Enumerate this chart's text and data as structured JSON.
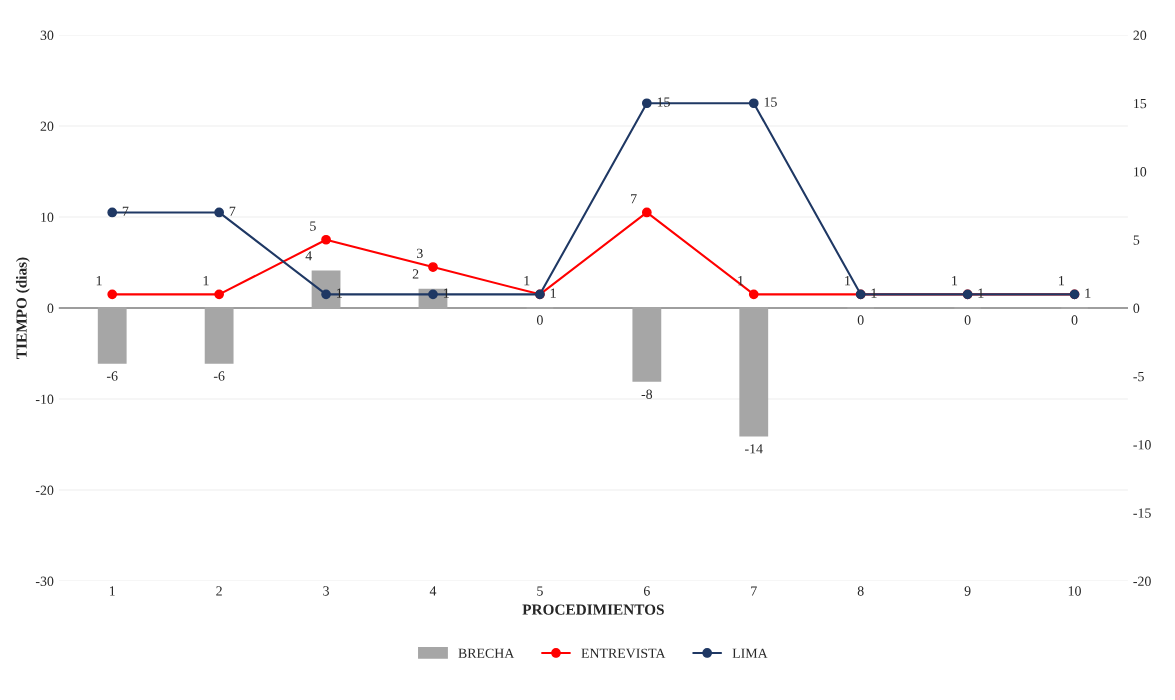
{
  "chart_data": {
    "type": "bar",
    "xlabel": "PROCEDIMIENTOS",
    "ylabel": "TIEMPO (dias)",
    "categories": [
      "1",
      "2",
      "3",
      "4",
      "5",
      "6",
      "7",
      "8",
      "9",
      "10"
    ],
    "series": [
      {
        "name": "BRECHA",
        "color": "#a6a6a6",
        "values": [
          -6,
          -6,
          4,
          2,
          0,
          -8,
          -14,
          0,
          0,
          0
        ]
      },
      {
        "name": "ENTREVISTA",
        "type": "line",
        "axis": "y2",
        "color": "#ff0000",
        "values": [
          1,
          1,
          5,
          3,
          1,
          7,
          1,
          1,
          1,
          1
        ]
      },
      {
        "name": "LIMA",
        "type": "line",
        "axis": "y2",
        "color": "#1f3864",
        "values": [
          7,
          7,
          1,
          1,
          1,
          15,
          15,
          1,
          1,
          1
        ]
      }
    ],
    "ylim": [
      -30,
      30
    ],
    "yticks": [
      -30,
      -20,
      -10,
      0,
      10,
      20,
      30
    ],
    "y2lim": [
      -20,
      20
    ],
    "y2ticks": [
      -20,
      -15,
      -10,
      -5,
      0,
      5,
      10,
      15,
      20
    ],
    "data_labels": true,
    "marker": "circle",
    "legend": "bottom",
    "grid": "y"
  }
}
